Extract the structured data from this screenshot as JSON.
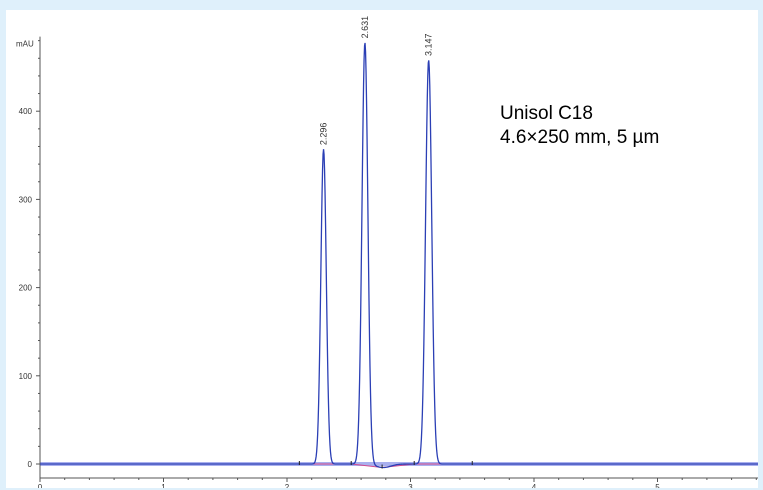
{
  "chart_data": {
    "type": "line",
    "ylabel": "mAU",
    "xlim": [
      0,
      6
    ],
    "ylim": [
      -5,
      480
    ],
    "y_ticks": [
      0,
      100,
      200,
      300,
      400
    ],
    "x_ticks": [
      0,
      1,
      2,
      3,
      4,
      5
    ],
    "x_tick_labels": [
      "0",
      "1",
      "2",
      "3",
      "4",
      "5"
    ],
    "y_tick_labels": [
      "0",
      "100",
      "200",
      "300",
      "400"
    ],
    "annotations": [
      "Unisol C18",
      "4.6×250 mm, 5 µm"
    ],
    "peaks": [
      {
        "label": "2.296",
        "retention_time": 2.296,
        "height": 357,
        "sigma": 0.022
      },
      {
        "label": "2.631",
        "retention_time": 2.631,
        "height": 478,
        "sigma": 0.024
      },
      {
        "label": "3.147",
        "retention_time": 3.147,
        "height": 458,
        "sigma": 0.025
      }
    ],
    "series": [
      {
        "color": "#2b3fb5"
      },
      {
        "color": "#d24a8c"
      }
    ],
    "baseline_segments": [
      {
        "x": [
          2.1,
          2.52
        ],
        "y": [
          0,
          0
        ]
      },
      {
        "x": [
          2.52,
          2.77
        ],
        "y": [
          0,
          -4
        ]
      },
      {
        "x": [
          2.77,
          3.03
        ],
        "y": [
          -4,
          0
        ]
      },
      {
        "x": [
          3.03,
          3.5
        ],
        "y": [
          0,
          0
        ]
      }
    ],
    "grid": false,
    "colors": {
      "trace": "#2b3fb5",
      "zero_line": "#a9b0ee",
      "baseline": "#d24a8c",
      "axis": "#555555",
      "background": "#dff0fb"
    }
  }
}
